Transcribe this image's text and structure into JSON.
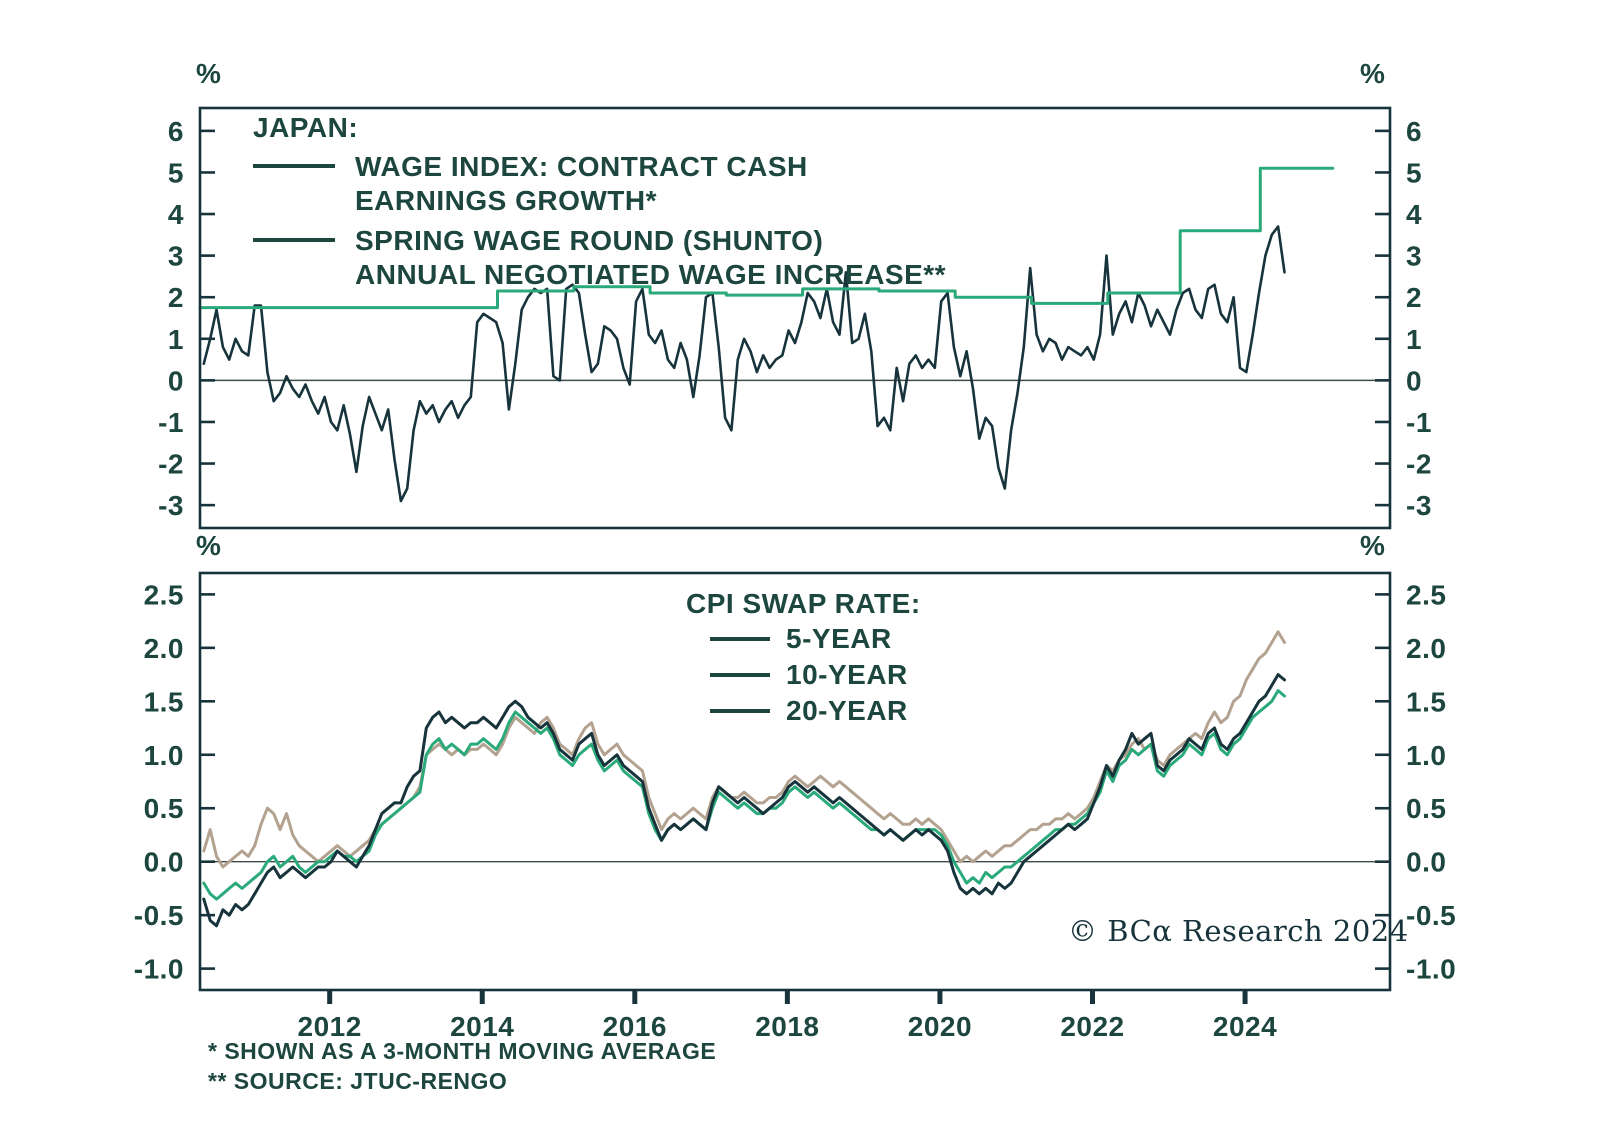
{
  "colors": {
    "dark_line": "#17333c",
    "green_line": "#2aaa7a",
    "tan_line": "#b3a28f",
    "text": "#1c463e",
    "frame": "#17333c",
    "zero_line": "#3f4a4a",
    "background": "#ffffff"
  },
  "legend_top": {
    "title": "JAPAN:",
    "items": [
      {
        "line1": "WAGE INDEX: CONTRACT CASH",
        "line2": "EARNINGS GROWTH*"
      },
      {
        "line1": "SPRING WAGE ROUND (SHUNTO)",
        "line2": "ANNUAL NEGOTIATED WAGE INCREASE**"
      }
    ]
  },
  "legend_bottom": {
    "title": "CPI SWAP RATE:",
    "items": [
      {
        "label": "5-YEAR"
      },
      {
        "label": "10-YEAR"
      },
      {
        "label": "20-YEAR"
      }
    ]
  },
  "footnotes": [
    "* SHOWN AS A 3-MONTH MOVING AVERAGE",
    "** SOURCE: JTUC-RENGO"
  ],
  "copyright": "© BCα Research 2024",
  "chart_data": [
    {
      "type": "line",
      "panel": "top",
      "title": "JAPAN:",
      "unit": "%",
      "grid": false,
      "legend_position": "top-left-inside",
      "xlim": [
        2010.3,
        2025.9
      ],
      "ylim": [
        -3.55,
        6.55
      ],
      "ytick_values": [
        6,
        5,
        4,
        3,
        2,
        1,
        0,
        -1,
        -2,
        -3
      ],
      "ytick_labels": [
        "6",
        "5",
        "4",
        "3",
        "2",
        "1",
        "0",
        "-1",
        "-2",
        "-3"
      ],
      "series": [
        {
          "name": "WAGE INDEX: CONTRACT CASH EARNINGS GROWTH*",
          "color": "dark_line",
          "style": "line",
          "z": 1,
          "width": 2.6,
          "x_start": 2010.35,
          "x_step": 0.083333,
          "values": [
            0.4,
            1.0,
            1.7,
            0.8,
            0.5,
            1.0,
            0.7,
            0.6,
            1.8,
            1.8,
            0.2,
            -0.5,
            -0.3,
            0.1,
            -0.2,
            -0.4,
            -0.1,
            -0.5,
            -0.8,
            -0.4,
            -1.0,
            -1.2,
            -0.6,
            -1.3,
            -2.2,
            -1.1,
            -0.4,
            -0.8,
            -1.2,
            -0.7,
            -1.9,
            -2.9,
            -2.6,
            -1.2,
            -0.5,
            -0.8,
            -0.6,
            -1.0,
            -0.7,
            -0.5,
            -0.9,
            -0.6,
            -0.4,
            1.4,
            1.6,
            1.5,
            1.4,
            0.9,
            -0.7,
            0.4,
            1.7,
            2.0,
            2.2,
            2.1,
            2.2,
            0.1,
            0.0,
            2.2,
            2.3,
            2.1,
            1.1,
            0.2,
            0.4,
            1.3,
            1.2,
            1.0,
            0.3,
            -0.1,
            1.9,
            2.2,
            1.1,
            0.9,
            1.2,
            0.5,
            0.3,
            0.9,
            0.5,
            -0.4,
            0.6,
            2.0,
            2.1,
            0.8,
            -0.9,
            -1.2,
            0.5,
            1.0,
            0.7,
            0.2,
            0.6,
            0.3,
            0.5,
            0.6,
            1.2,
            0.9,
            1.4,
            2.1,
            1.9,
            1.5,
            2.2,
            1.4,
            1.1,
            2.6,
            0.9,
            1.0,
            1.6,
            0.7,
            -1.1,
            -0.9,
            -1.2,
            0.3,
            -0.5,
            0.4,
            0.6,
            0.3,
            0.5,
            0.3,
            1.9,
            2.1,
            0.8,
            0.1,
            0.7,
            -0.2,
            -1.4,
            -0.9,
            -1.1,
            -2.1,
            -2.6,
            -1.2,
            -0.3,
            0.8,
            2.7,
            1.1,
            0.7,
            1.0,
            0.9,
            0.5,
            0.8,
            0.7,
            0.6,
            0.8,
            0.5,
            1.1,
            3.0,
            1.1,
            1.6,
            1.9,
            1.4,
            2.1,
            1.8,
            1.3,
            1.7,
            1.4,
            1.1,
            1.7,
            2.1,
            2.2,
            1.7,
            1.5,
            2.2,
            2.3,
            1.6,
            1.4,
            2.0,
            0.3,
            0.2,
            1.1,
            2.1,
            3.0,
            3.5,
            3.7,
            2.6
          ]
        },
        {
          "name": "SPRING WAGE ROUND (SHUNTO) ANNUAL NEGOTIATED WAGE INCREASE**",
          "color": "green_line",
          "style": "step",
          "z": 2,
          "width": 3.0,
          "points": [
            [
              2010.3,
              1.75
            ],
            [
              2014.2,
              2.15
            ],
            [
              2015.2,
              2.25
            ],
            [
              2016.2,
              2.1
            ],
            [
              2017.2,
              2.05
            ],
            [
              2018.2,
              2.2
            ],
            [
              2019.2,
              2.15
            ],
            [
              2020.2,
              2.0
            ],
            [
              2021.2,
              1.85
            ],
            [
              2022.2,
              2.1
            ],
            [
              2023.15,
              3.6
            ],
            [
              2024.2,
              5.1
            ],
            [
              2025.15,
              5.1
            ]
          ]
        }
      ]
    },
    {
      "type": "line",
      "panel": "bottom",
      "title": "CPI SWAP RATE:",
      "unit": "%",
      "grid": false,
      "legend_position": "top-center-inside",
      "xlim": [
        2010.3,
        2025.9
      ],
      "ylim": [
        -1.2,
        2.7
      ],
      "ytick_values": [
        2.5,
        2.0,
        1.5,
        1.0,
        0.5,
        0.0,
        -0.5,
        -1.0
      ],
      "ytick_labels": [
        "2.5",
        "2.0",
        "1.5",
        "1.0",
        "0.5",
        "0.0",
        "-0.5",
        "-1.0"
      ],
      "xtick_values": [
        2012,
        2014,
        2016,
        2018,
        2020,
        2022,
        2024
      ],
      "xtick_labels": [
        "2012",
        "2014",
        "2016",
        "2018",
        "2020",
        "2022",
        "2024"
      ],
      "series": [
        {
          "name": "5-YEAR",
          "color": "dark_line",
          "style": "line",
          "z": 3,
          "width": 3.0,
          "x_start": 2010.35,
          "x_step": 0.083333,
          "values": [
            -0.35,
            -0.55,
            -0.6,
            -0.45,
            -0.5,
            -0.4,
            -0.45,
            -0.4,
            -0.3,
            -0.2,
            -0.1,
            -0.05,
            -0.15,
            -0.1,
            -0.05,
            -0.1,
            -0.15,
            -0.1,
            -0.05,
            -0.05,
            0.0,
            0.1,
            0.05,
            0.0,
            -0.05,
            0.05,
            0.15,
            0.3,
            0.45,
            0.5,
            0.55,
            0.55,
            0.7,
            0.8,
            0.85,
            1.25,
            1.35,
            1.4,
            1.3,
            1.35,
            1.3,
            1.25,
            1.3,
            1.3,
            1.35,
            1.3,
            1.25,
            1.35,
            1.45,
            1.5,
            1.45,
            1.35,
            1.3,
            1.25,
            1.3,
            1.2,
            1.05,
            1.0,
            0.95,
            1.1,
            1.15,
            1.2,
            1.0,
            0.9,
            0.95,
            1.0,
            0.9,
            0.85,
            0.8,
            0.75,
            0.5,
            0.35,
            0.2,
            0.3,
            0.35,
            0.3,
            0.35,
            0.4,
            0.35,
            0.3,
            0.55,
            0.7,
            0.65,
            0.6,
            0.55,
            0.6,
            0.55,
            0.5,
            0.45,
            0.5,
            0.55,
            0.6,
            0.7,
            0.75,
            0.7,
            0.65,
            0.7,
            0.65,
            0.6,
            0.55,
            0.6,
            0.55,
            0.5,
            0.45,
            0.4,
            0.35,
            0.3,
            0.25,
            0.3,
            0.25,
            0.2,
            0.25,
            0.3,
            0.25,
            0.3,
            0.25,
            0.2,
            0.1,
            -0.1,
            -0.25,
            -0.3,
            -0.25,
            -0.3,
            -0.25,
            -0.3,
            -0.2,
            -0.25,
            -0.2,
            -0.1,
            0.0,
            0.05,
            0.1,
            0.15,
            0.2,
            0.25,
            0.3,
            0.35,
            0.3,
            0.35,
            0.4,
            0.55,
            0.7,
            0.9,
            0.8,
            0.95,
            1.05,
            1.2,
            1.1,
            1.15,
            1.2,
            0.9,
            0.85,
            0.95,
            1.0,
            1.05,
            1.15,
            1.1,
            1.05,
            1.2,
            1.25,
            1.1,
            1.05,
            1.15,
            1.2,
            1.3,
            1.4,
            1.5,
            1.55,
            1.65,
            1.75,
            1.7
          ]
        },
        {
          "name": "10-YEAR",
          "color": "green_line",
          "style": "line",
          "z": 2,
          "width": 3.0,
          "x_start": 2010.35,
          "x_step": 0.083333,
          "values": [
            -0.2,
            -0.3,
            -0.35,
            -0.3,
            -0.25,
            -0.2,
            -0.25,
            -0.2,
            -0.15,
            -0.1,
            0.0,
            0.05,
            -0.05,
            0.0,
            0.05,
            -0.05,
            -0.1,
            -0.05,
            0.0,
            0.0,
            0.05,
            0.1,
            0.05,
            0.05,
            0.0,
            0.05,
            0.1,
            0.25,
            0.35,
            0.4,
            0.45,
            0.5,
            0.55,
            0.6,
            0.65,
            1.0,
            1.1,
            1.15,
            1.05,
            1.1,
            1.05,
            1.0,
            1.1,
            1.1,
            1.15,
            1.1,
            1.05,
            1.15,
            1.3,
            1.4,
            1.35,
            1.3,
            1.25,
            1.2,
            1.25,
            1.15,
            1.0,
            0.95,
            0.9,
            1.0,
            1.05,
            1.1,
            0.95,
            0.85,
            0.9,
            0.95,
            0.85,
            0.8,
            0.75,
            0.7,
            0.45,
            0.3,
            0.2,
            0.3,
            0.35,
            0.3,
            0.35,
            0.4,
            0.35,
            0.3,
            0.5,
            0.65,
            0.6,
            0.55,
            0.5,
            0.55,
            0.5,
            0.45,
            0.45,
            0.5,
            0.5,
            0.55,
            0.65,
            0.7,
            0.65,
            0.6,
            0.65,
            0.6,
            0.55,
            0.5,
            0.55,
            0.5,
            0.45,
            0.4,
            0.35,
            0.3,
            0.3,
            0.25,
            0.3,
            0.25,
            0.2,
            0.25,
            0.3,
            0.3,
            0.3,
            0.3,
            0.25,
            0.15,
            0.0,
            -0.1,
            -0.2,
            -0.15,
            -0.2,
            -0.1,
            -0.15,
            -0.1,
            -0.05,
            -0.05,
            0.0,
            0.05,
            0.1,
            0.15,
            0.2,
            0.25,
            0.3,
            0.3,
            0.35,
            0.35,
            0.4,
            0.45,
            0.55,
            0.65,
            0.85,
            0.75,
            0.9,
            0.95,
            1.05,
            1.0,
            1.05,
            1.1,
            0.85,
            0.8,
            0.9,
            0.95,
            1.0,
            1.1,
            1.05,
            1.0,
            1.15,
            1.2,
            1.05,
            1.0,
            1.1,
            1.15,
            1.25,
            1.35,
            1.4,
            1.45,
            1.5,
            1.6,
            1.55
          ]
        },
        {
          "name": "20-YEAR",
          "color": "tan_line",
          "style": "line",
          "z": 1,
          "width": 3.0,
          "x_start": 2010.35,
          "x_step": 0.083333,
          "values": [
            0.1,
            0.3,
            0.05,
            -0.05,
            0.0,
            0.05,
            0.1,
            0.05,
            0.15,
            0.35,
            0.5,
            0.45,
            0.3,
            0.45,
            0.25,
            0.15,
            0.1,
            0.05,
            0.0,
            0.05,
            0.1,
            0.15,
            0.1,
            0.05,
            0.1,
            0.15,
            0.2,
            0.3,
            0.35,
            0.4,
            0.45,
            0.5,
            0.55,
            0.6,
            0.7,
            1.0,
            1.05,
            1.1,
            1.05,
            1.0,
            1.05,
            1.0,
            1.05,
            1.05,
            1.1,
            1.05,
            1.0,
            1.1,
            1.25,
            1.35,
            1.3,
            1.25,
            1.2,
            1.3,
            1.35,
            1.25,
            1.1,
            1.05,
            1.0,
            1.15,
            1.25,
            1.3,
            1.1,
            1.0,
            1.05,
            1.1,
            1.0,
            0.95,
            0.9,
            0.85,
            0.6,
            0.45,
            0.3,
            0.4,
            0.45,
            0.4,
            0.45,
            0.5,
            0.45,
            0.4,
            0.6,
            0.7,
            0.65,
            0.6,
            0.6,
            0.65,
            0.6,
            0.55,
            0.55,
            0.6,
            0.6,
            0.65,
            0.75,
            0.8,
            0.75,
            0.7,
            0.75,
            0.8,
            0.75,
            0.7,
            0.75,
            0.7,
            0.65,
            0.6,
            0.55,
            0.5,
            0.45,
            0.4,
            0.45,
            0.4,
            0.35,
            0.35,
            0.4,
            0.35,
            0.4,
            0.35,
            0.3,
            0.2,
            0.1,
            0.0,
            0.05,
            0.0,
            0.05,
            0.1,
            0.05,
            0.1,
            0.15,
            0.15,
            0.2,
            0.25,
            0.3,
            0.3,
            0.35,
            0.35,
            0.4,
            0.4,
            0.45,
            0.4,
            0.45,
            0.5,
            0.6,
            0.75,
            0.9,
            0.85,
            0.95,
            1.0,
            1.1,
            1.15,
            1.05,
            1.1,
            0.95,
            0.9,
            1.0,
            1.05,
            1.1,
            1.15,
            1.2,
            1.15,
            1.3,
            1.4,
            1.3,
            1.35,
            1.5,
            1.55,
            1.7,
            1.8,
            1.9,
            1.95,
            2.05,
            2.15,
            2.05
          ]
        }
      ]
    }
  ]
}
